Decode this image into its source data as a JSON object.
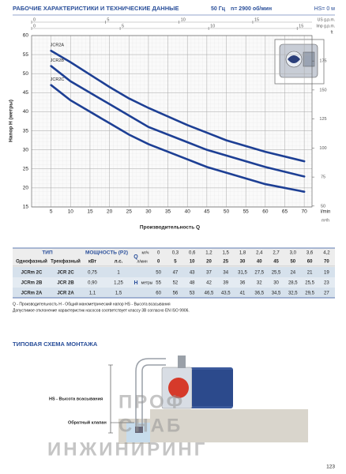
{
  "header": {
    "title": "РАБОЧИЕ ХАРАКТЕРИСТИКИ И ТЕХНИЧЕСКИЕ ДАННЫЕ",
    "freq": "50 Гц",
    "speed": "n= 2900 об/мин",
    "hs": "HS= 0 м"
  },
  "chart_data": {
    "type": "line",
    "xlabel": "Производительность Q",
    "xunit": "l/min",
    "x2unit": "m³/h",
    "ylabel": "Напор H (метры)",
    "y2unit": "ft",
    "x": [
      5,
      10,
      20,
      25,
      30,
      40,
      45,
      50,
      60,
      70
    ],
    "xlim": [
      0,
      72
    ],
    "xticks": [
      5,
      10,
      15,
      20,
      25,
      30,
      35,
      40,
      45,
      50,
      55,
      60,
      65,
      70
    ],
    "ylim": [
      15,
      60
    ],
    "yticks": [
      15,
      20,
      25,
      30,
      35,
      40,
      45,
      50,
      55,
      60
    ],
    "y2lim": [
      49.2,
      196.9
    ],
    "y2ticks": [
      50,
      75,
      100,
      125,
      150,
      175
    ],
    "top_axes": [
      {
        "unit": "US g.p.m.",
        "lim": [
          0,
          19.02
        ],
        "ticks": [
          0,
          5,
          10,
          15
        ]
      },
      {
        "unit": "Imp g.p.m.",
        "lim": [
          0,
          15.84
        ],
        "ticks": [
          0,
          5,
          10,
          15
        ]
      }
    ],
    "grid": true,
    "series": [
      {
        "name": "JCR2A",
        "color": "#1d3f94",
        "values": [
          56,
          53,
          46.5,
          43.5,
          41,
          36.5,
          34.5,
          32.5,
          29.5,
          27
        ]
      },
      {
        "name": "JCR2B",
        "color": "#1d3f94",
        "values": [
          52,
          48,
          42,
          39,
          36,
          32,
          30,
          28.5,
          25.5,
          23
        ]
      },
      {
        "name": "JCR2C",
        "color": "#1d3f94",
        "values": [
          47,
          43,
          37,
          34,
          31.5,
          27.5,
          25.5,
          24,
          21,
          19
        ]
      }
    ]
  },
  "table": {
    "type": "ТИП",
    "power": "МОЩНОСТЬ (P2)",
    "q": "Q",
    "single": "Однофазный",
    "three": "Трехфазный",
    "kw": "кВт",
    "hp": "л.с.",
    "m3h": "м³/ч",
    "lmin": "л/мин",
    "h": "H",
    "m": "метры",
    "q_m3h": [
      "0",
      "0,3",
      "0,6",
      "1,2",
      "1,5",
      "1,8",
      "2,4",
      "2,7",
      "3,0",
      "3,6",
      "4,2"
    ],
    "q_lmin": [
      0,
      5,
      10,
      20,
      25,
      30,
      40,
      45,
      50,
      60,
      70
    ],
    "rows": [
      {
        "single": "JCRm 2C",
        "three": "JCR 2C",
        "kw": "0,75",
        "hp": "1",
        "h": [
          "50",
          "47",
          "43",
          "37",
          "34",
          "31,5",
          "27,5",
          "25,5",
          "24",
          "21",
          "19"
        ]
      },
      {
        "single": "JCRm 2B",
        "three": "JCR 2B",
        "kw": "0,90",
        "hp": "1,25",
        "h": [
          "55",
          "52",
          "48",
          "42",
          "39",
          "36",
          "32",
          "30",
          "28,5",
          "25,5",
          "23"
        ]
      },
      {
        "single": "JCRm 2A",
        "three": "JCR 2A",
        "kw": "1,1",
        "hp": "1,5",
        "h": [
          "60",
          "56",
          "53",
          "46,5",
          "43,5",
          "41",
          "36,5",
          "34,5",
          "32,5",
          "29,5",
          "27"
        ]
      }
    ]
  },
  "notes": [
    "Q - Производительность   H - Общий манометрический напор   HS - Высота всасывания",
    "Допустимое отклонение характеристик насосов соответствует классу 3B согласно EN ISO 9906."
  ],
  "install": {
    "title": "ТИПОВАЯ СХЕМА МОНТАЖА",
    "hs_label": "HS - Высота всасывания",
    "valve_label": "Обратный клапан"
  },
  "watermark": [
    "ПРОФ",
    "СНАБ",
    "ИНЖИНИРИНГ"
  ],
  "page_number": "123"
}
